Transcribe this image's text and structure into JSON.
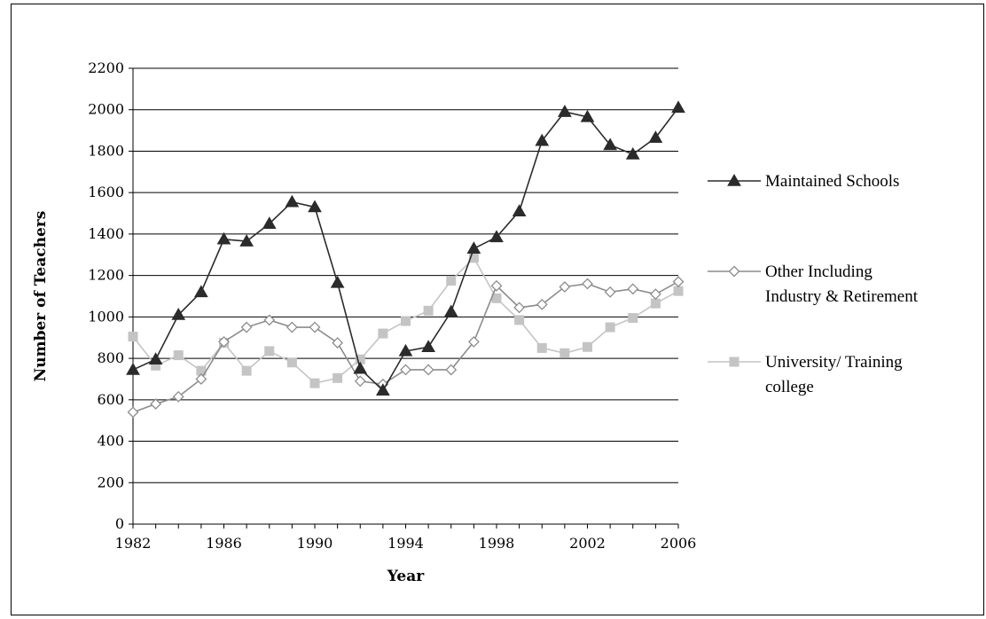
{
  "chart_data": {
    "type": "line",
    "xlabel": "Year",
    "ylabel": "Number of Teachers",
    "xlim": [
      1982,
      2006
    ],
    "ylim": [
      0,
      2200
    ],
    "x_ticks": [
      1982,
      1986,
      1990,
      1994,
      1998,
      2002,
      2006
    ],
    "y_ticks": [
      0,
      200,
      400,
      600,
      800,
      1000,
      1200,
      1400,
      1600,
      1800,
      2000,
      2200
    ],
    "grid": "horizontal",
    "legend_position": "right",
    "x": [
      1982,
      1983,
      1984,
      1985,
      1986,
      1987,
      1988,
      1989,
      1990,
      1991,
      1992,
      1993,
      1994,
      1995,
      1996,
      1997,
      1998,
      1999,
      2000,
      2001,
      2002,
      2003,
      2004,
      2005,
      2006
    ],
    "series": [
      {
        "name": "Maintained Schools",
        "legend_lines": [
          "Maintained Schools"
        ],
        "color": "#2b2b2b",
        "marker": "triangle",
        "values": [
          745,
          795,
          1010,
          1120,
          1375,
          1365,
          1450,
          1555,
          1530,
          1165,
          750,
          645,
          835,
          855,
          1025,
          1330,
          1385,
          1510,
          1850,
          1990,
          1965,
          1830,
          1785,
          1865,
          2010
        ]
      },
      {
        "name": "Other Including Industry & Retirement",
        "legend_lines": [
          "Other Including",
          "Industry & Retirement"
        ],
        "color": "#8c8c8c",
        "marker": "diamond",
        "values": [
          540,
          580,
          615,
          700,
          880,
          950,
          985,
          950,
          950,
          875,
          690,
          675,
          745,
          745,
          745,
          880,
          1150,
          1045,
          1060,
          1145,
          1160,
          1120,
          1135,
          1110,
          1170
        ]
      },
      {
        "name": "University/ Training college",
        "legend_lines": [
          "University/ Training",
          "college"
        ],
        "color": "#c4c4c4",
        "marker": "square",
        "values": [
          905,
          765,
          815,
          740,
          875,
          740,
          835,
          780,
          680,
          705,
          795,
          920,
          980,
          1030,
          1175,
          1285,
          1090,
          985,
          850,
          825,
          855,
          950,
          995,
          1065,
          1125
        ]
      }
    ]
  }
}
